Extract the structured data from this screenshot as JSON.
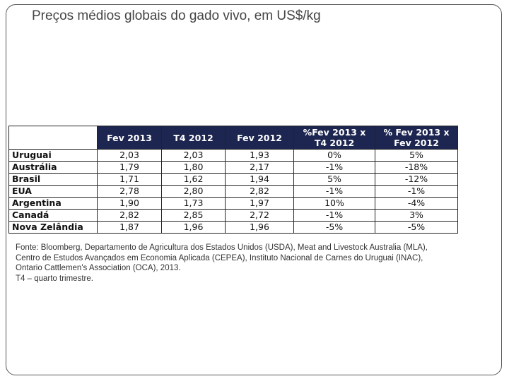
{
  "title": "Preços médios globais do gado vivo, em US$/kg",
  "table": {
    "header": [
      "Fev 2013",
      "T4 2012",
      "Fev 2012",
      "%Fev 2013 x T4 2012",
      "% Fev 2013 x Fev 2012"
    ],
    "rows": [
      [
        "Uruguai",
        "2,03",
        "2,03",
        "1,93",
        "0%",
        "5%"
      ],
      [
        "Austrália",
        "1,79",
        "1,80",
        "2,17",
        "-1%",
        "-18%"
      ],
      [
        "Brasil",
        "1,71",
        "1,62",
        "1,94",
        "5%",
        "-12%"
      ],
      [
        "EUA",
        "2,78",
        "2,80",
        "2,82",
        "-1%",
        "-1%"
      ],
      [
        "Argentina",
        "1,90",
        "1,73",
        "1,97",
        "10%",
        "-4%"
      ],
      [
        "Canadá",
        "2,82",
        "2,85",
        "2,72",
        "-1%",
        "3%"
      ],
      [
        "Nova Zelândia",
        "1,87",
        "1,96",
        "1,96",
        "-5%",
        "-5%"
      ]
    ]
  },
  "footnote": [
    "Fonte: Bloomberg, Departamento de Agricultura dos Estados Unidos (USDA), Meat and Livestock Australia (MLA),",
    "Centro de Estudos Avançados em Economia Aplicada (CEPEA), Instituto Nacional de Carnes do Uruguai (INAC),",
    "Ontario Cattlemen's Association (OCA), 2013.",
    "T4 – quarto trimestre."
  ]
}
